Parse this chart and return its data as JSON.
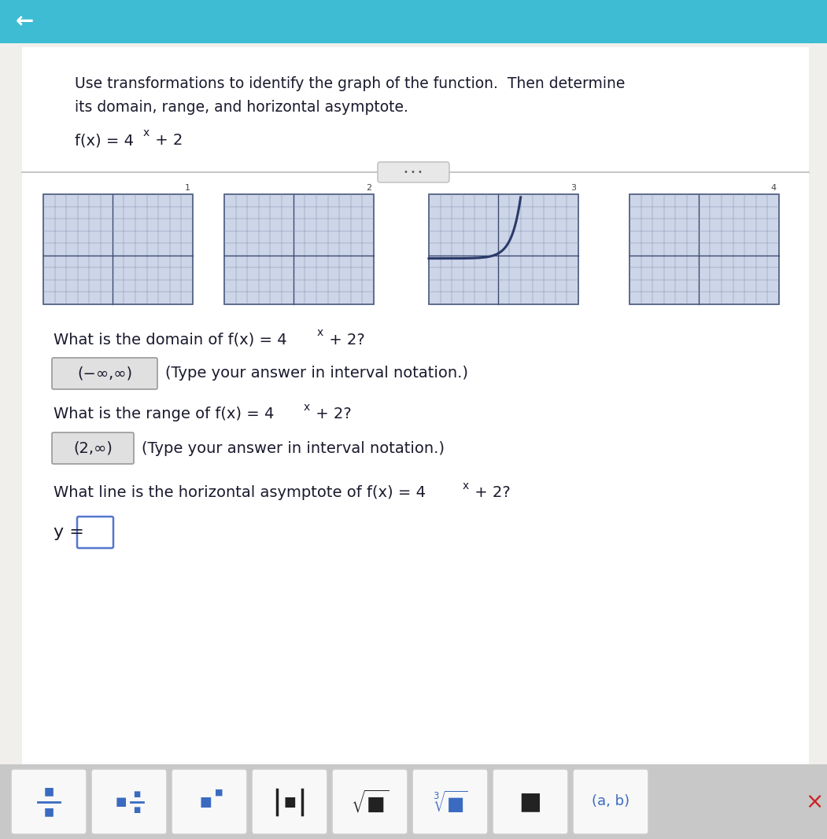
{
  "title_line1": "Use transformations to identify the graph of the function.  Then determine",
  "title_line2": "its domain, range, and horizontal asymptote.",
  "domain_question": "What is the domain of f(x) = 4",
  "domain_question2": " + 2?",
  "domain_answer": "(−∞,∞)",
  "domain_note": "(Type your answer in interval notation.)",
  "range_question": "What is the range of f(x) = 4",
  "range_question2": " + 2?",
  "range_answer": "(2,∞)",
  "range_note": "(Type your answer in interval notation.)",
  "asymptote_question": "What line is the horizontal asymptote of f(x) = 4",
  "asymptote_question2": " + 2?",
  "asymptote_label": "y =",
  "bg_top": "#3dbcd4",
  "bg_main": "#f0efec",
  "white_bg": "#ffffff",
  "dark_text": "#2a2a3a",
  "answer_box_bg": "#e0e0e0",
  "answer_box_edge": "#999999",
  "grid_bg": "#cdd5e8",
  "grid_line": "#8090b0",
  "grid_axis": "#3a4a70",
  "curve_color": "#2a3a6a",
  "toolbar_bg": "#c8c8c8",
  "button_bg": "#f8f8f8",
  "button_edge": "#cccccc",
  "button_icon": "#3a6bc0",
  "separator_color": "#bbbbbb",
  "text_color": "#1a1a2e"
}
